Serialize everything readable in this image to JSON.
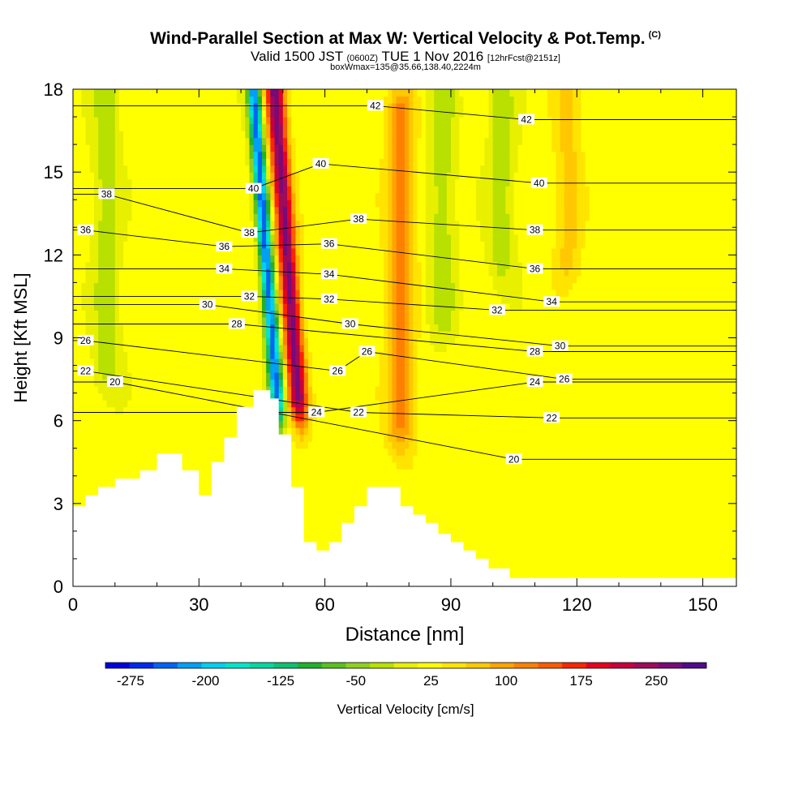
{
  "header": {
    "title": "Wind-Parallel Section at Max W: Vertical Velocity & Pot.Temp.",
    "copyright": "(C)",
    "valid_prefix": "Valid 1500 JST",
    "valid_utc": "(0600Z)",
    "valid_date": "TUE 1 Nov 2016",
    "forecast": "[12hrFcst@2151z]",
    "box_info": "boxWmax=135@35.66,138.40,2224m"
  },
  "chart_data": {
    "type": "heatmap",
    "xlabel": "Distance [nm]",
    "ylabel": "Height [Kft MSL]",
    "xlim": [
      0,
      158
    ],
    "ylim": [
      0,
      18
    ],
    "x_ticks": [
      0,
      30,
      60,
      90,
      120,
      150
    ],
    "y_ticks": [
      0,
      3,
      6,
      9,
      12,
      15,
      18
    ],
    "colorbar": {
      "label": "Vertical Velocity [cm/s]",
      "tick_labels": [
        "-275",
        "-200",
        "-125",
        "-50",
        "25",
        "100",
        "175",
        "250"
      ],
      "tick_values": [
        -275,
        -200,
        -125,
        -50,
        25,
        100,
        175,
        250
      ],
      "bins": [
        -300,
        -275,
        -250,
        -225,
        -200,
        -175,
        -150,
        -125,
        -100,
        -75,
        -50,
        -25,
        0,
        25,
        50,
        75,
        100,
        125,
        150,
        175,
        200,
        225,
        250,
        275,
        300
      ],
      "colors": [
        "#0000e0",
        "#0028f0",
        "#0064f5",
        "#00a0f5",
        "#00d0f0",
        "#00e6c8",
        "#00d8a0",
        "#10c070",
        "#20b030",
        "#58c020",
        "#8ed020",
        "#b8e000",
        "#e8f000",
        "#ffff00",
        "#ffe400",
        "#ffc800",
        "#ffa400",
        "#ff8000",
        "#ff5a00",
        "#ff2400",
        "#e8001e",
        "#c8003c",
        "#a00a5a",
        "#780a7a",
        "#500a8c"
      ]
    },
    "terrain": [
      [
        0,
        2.9
      ],
      [
        3,
        2.9
      ],
      [
        3,
        3.3
      ],
      [
        6,
        3.3
      ],
      [
        6,
        3.6
      ],
      [
        10,
        3.6
      ],
      [
        10,
        3.9
      ],
      [
        16,
        3.9
      ],
      [
        16,
        4.2
      ],
      [
        20,
        4.2
      ],
      [
        20,
        4.8
      ],
      [
        26,
        4.8
      ],
      [
        26,
        4.2
      ],
      [
        30,
        4.2
      ],
      [
        30,
        3.3
      ],
      [
        33,
        3.3
      ],
      [
        33,
        4.5
      ],
      [
        36,
        4.5
      ],
      [
        36,
        5.4
      ],
      [
        39,
        5.4
      ],
      [
        39,
        6.5
      ],
      [
        43,
        6.5
      ],
      [
        43,
        7.1
      ],
      [
        47,
        7.1
      ],
      [
        47,
        6.8
      ],
      [
        49,
        6.8
      ],
      [
        49,
        5.5
      ],
      [
        52,
        5.5
      ],
      [
        52,
        3.6
      ],
      [
        55,
        3.6
      ],
      [
        55,
        1.6
      ],
      [
        58,
        1.6
      ],
      [
        58,
        1.3
      ],
      [
        61,
        1.3
      ],
      [
        61,
        1.6
      ],
      [
        64,
        1.6
      ],
      [
        64,
        2.3
      ],
      [
        67,
        2.3
      ],
      [
        67,
        2.9
      ],
      [
        70,
        2.9
      ],
      [
        70,
        3.6
      ],
      [
        78,
        3.6
      ],
      [
        78,
        2.9
      ],
      [
        81,
        2.9
      ],
      [
        81,
        2.6
      ],
      [
        84,
        2.6
      ],
      [
        84,
        2.3
      ],
      [
        87,
        2.3
      ],
      [
        87,
        1.9
      ],
      [
        90,
        1.9
      ],
      [
        90,
        1.6
      ],
      [
        93,
        1.6
      ],
      [
        93,
        1.3
      ],
      [
        96,
        1.3
      ],
      [
        96,
        1.0
      ],
      [
        99,
        1.0
      ],
      [
        99,
        0.65
      ],
      [
        104,
        0.65
      ],
      [
        104,
        0.3
      ],
      [
        158,
        0.3
      ]
    ],
    "velocity_features": [
      {
        "kind": "updraft",
        "x": 51,
        "y_range": [
          7,
          18
        ],
        "value": 250
      },
      {
        "kind": "downdraft",
        "x": 46,
        "y_range": [
          7,
          18
        ],
        "value": -275
      },
      {
        "kind": "weak_updraft",
        "x": 78,
        "y_range": [
          6,
          17
        ],
        "value": 100
      },
      {
        "kind": "weak_updraft",
        "x": 118,
        "y_range": [
          12,
          18
        ],
        "value": 50
      },
      {
        "kind": "weak_downdraft",
        "x": 8,
        "y_range": [
          8,
          18
        ],
        "value": -50
      },
      {
        "kind": "weak_downdraft",
        "x": 88,
        "y_range": [
          10,
          18
        ],
        "value": -50
      },
      {
        "kind": "weak_downdraft",
        "x": 102,
        "y_range": [
          12,
          18
        ],
        "value": -50
      }
    ],
    "isentrope_labels": [
      {
        "text": "42",
        "x": 72,
        "y": 17.4
      },
      {
        "text": "42",
        "x": 108,
        "y": 16.9
      },
      {
        "text": "40",
        "x": 59,
        "y": 15.3
      },
      {
        "text": "40",
        "x": 111,
        "y": 14.6
      },
      {
        "text": "40",
        "x": 43,
        "y": 14.4
      },
      {
        "text": "38",
        "x": 8,
        "y": 14.2
      },
      {
        "text": "38",
        "x": 68,
        "y": 13.3
      },
      {
        "text": "38",
        "x": 110,
        "y": 12.9
      },
      {
        "text": "38",
        "x": 42,
        "y": 12.8
      },
      {
        "text": "36",
        "x": 3,
        "y": 12.9
      },
      {
        "text": "36",
        "x": 36,
        "y": 12.3
      },
      {
        "text": "36",
        "x": 61,
        "y": 12.4
      },
      {
        "text": "36",
        "x": 110,
        "y": 11.5
      },
      {
        "text": "34",
        "x": 36,
        "y": 11.5
      },
      {
        "text": "34",
        "x": 61,
        "y": 11.3
      },
      {
        "text": "34",
        "x": 114,
        "y": 10.3
      },
      {
        "text": "32",
        "x": 42,
        "y": 10.5
      },
      {
        "text": "32",
        "x": 61,
        "y": 10.4
      },
      {
        "text": "32",
        "x": 101,
        "y": 10.0
      },
      {
        "text": "30",
        "x": 32,
        "y": 10.2
      },
      {
        "text": "30",
        "x": 66,
        "y": 9.5
      },
      {
        "text": "30",
        "x": 116,
        "y": 8.7
      },
      {
        "text": "28",
        "x": 39,
        "y": 9.5
      },
      {
        "text": "28",
        "x": 110,
        "y": 8.5
      },
      {
        "text": "26",
        "x": 3,
        "y": 8.9
      },
      {
        "text": "26",
        "x": 70,
        "y": 8.5
      },
      {
        "text": "26",
        "x": 63,
        "y": 7.8
      },
      {
        "text": "26",
        "x": 117,
        "y": 7.5
      },
      {
        "text": "24",
        "x": 110,
        "y": 7.4
      },
      {
        "text": "24",
        "x": 58,
        "y": 6.3
      },
      {
        "text": "22",
        "x": 3,
        "y": 7.8
      },
      {
        "text": "22",
        "x": 68,
        "y": 6.3
      },
      {
        "text": "22",
        "x": 114,
        "y": 6.1
      },
      {
        "text": "20",
        "x": 10,
        "y": 7.4
      },
      {
        "text": "20",
        "x": 105,
        "y": 4.6
      }
    ]
  }
}
